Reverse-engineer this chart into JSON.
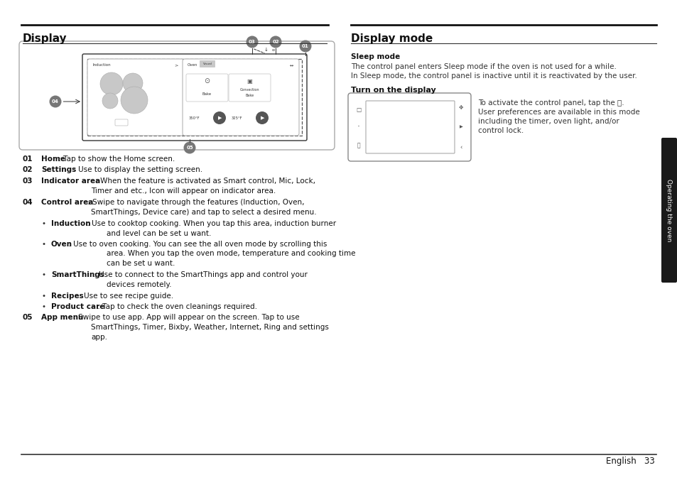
{
  "title_left": "Display",
  "title_right": "Display mode",
  "bg_color": "#ffffff",
  "text_color": "#1a1a1a",
  "sleep_mode_title": "Sleep mode",
  "sleep_mode_text1": "The control panel enters Sleep mode if the oven is not used for a while.",
  "sleep_mode_text2": "In Sleep mode, the control panel is inactive until it is reactivated by the user.",
  "turn_on_title": "Turn on the display",
  "turn_on_line1": "To activate the control panel, tap the ⓘ.",
  "turn_on_line2": "User preferences are available in this mode",
  "turn_on_line3": "including the timer, oven light, and/or",
  "turn_on_line4": "control lock.",
  "tab_text": "Operating the oven",
  "footer_text": "English   33",
  "items": [
    {
      "num": "01",
      "label": "Home",
      "colon": " : ",
      "desc": "Tap to show the Home screen.",
      "indent": false,
      "bullet": false
    },
    {
      "num": "02",
      "label": "Settings",
      "colon": " : ",
      "desc": "Use to display the setting screen.",
      "indent": false,
      "bullet": false
    },
    {
      "num": "03",
      "label": "Indicator area",
      "colon": " : ",
      "desc": "When the feature is activated as Smart control, Mic, Lock,",
      "desc2": "Timer and etc., Icon will appear on indicator area.",
      "indent": false,
      "bullet": false
    },
    {
      "num": "04",
      "label": "Control area",
      "colon": " : ",
      "desc": "Swipe to navigate through the features (Induction, Oven,",
      "desc2": "SmartThings, Device care) and tap to select a desired menu.",
      "indent": false,
      "bullet": false
    },
    {
      "num": "",
      "label": "Induction",
      "colon": " : ",
      "desc": "Use to cooktop cooking. When you tap this area, induction burner",
      "desc2": "and level can be set u want.",
      "indent": true,
      "bullet": true
    },
    {
      "num": "",
      "label": "Oven",
      "colon": " : ",
      "desc": "Use to oven cooking. You can see the all oven mode by scrolling this",
      "desc2": "area. When you tap the oven mode, temperature and cooking time",
      "desc3": "can be set u want.",
      "indent": true,
      "bullet": true
    },
    {
      "num": "",
      "label": "SmartThings",
      "colon": " : ",
      "desc": "Use to connect to the SmartThings app and control your",
      "desc2": "devices remotely.",
      "indent": true,
      "bullet": true
    },
    {
      "num": "",
      "label": "Recipes",
      "colon": " : ",
      "desc": "Use to see recipe guide.",
      "indent": true,
      "bullet": true
    },
    {
      "num": "",
      "label": "Product care",
      "colon": " : ",
      "desc": "Tap to check the oven cleanings required.",
      "indent": true,
      "bullet": true
    },
    {
      "num": "05",
      "label": "App menu",
      "colon": " : ",
      "desc": "Swipe to use app. App will appear on the screen. Tap to use",
      "desc2": "SmartThings, Timer, Bixby, Weather, Internet, Ring and settings",
      "desc3": "app.",
      "indent": false,
      "bullet": false
    }
  ]
}
